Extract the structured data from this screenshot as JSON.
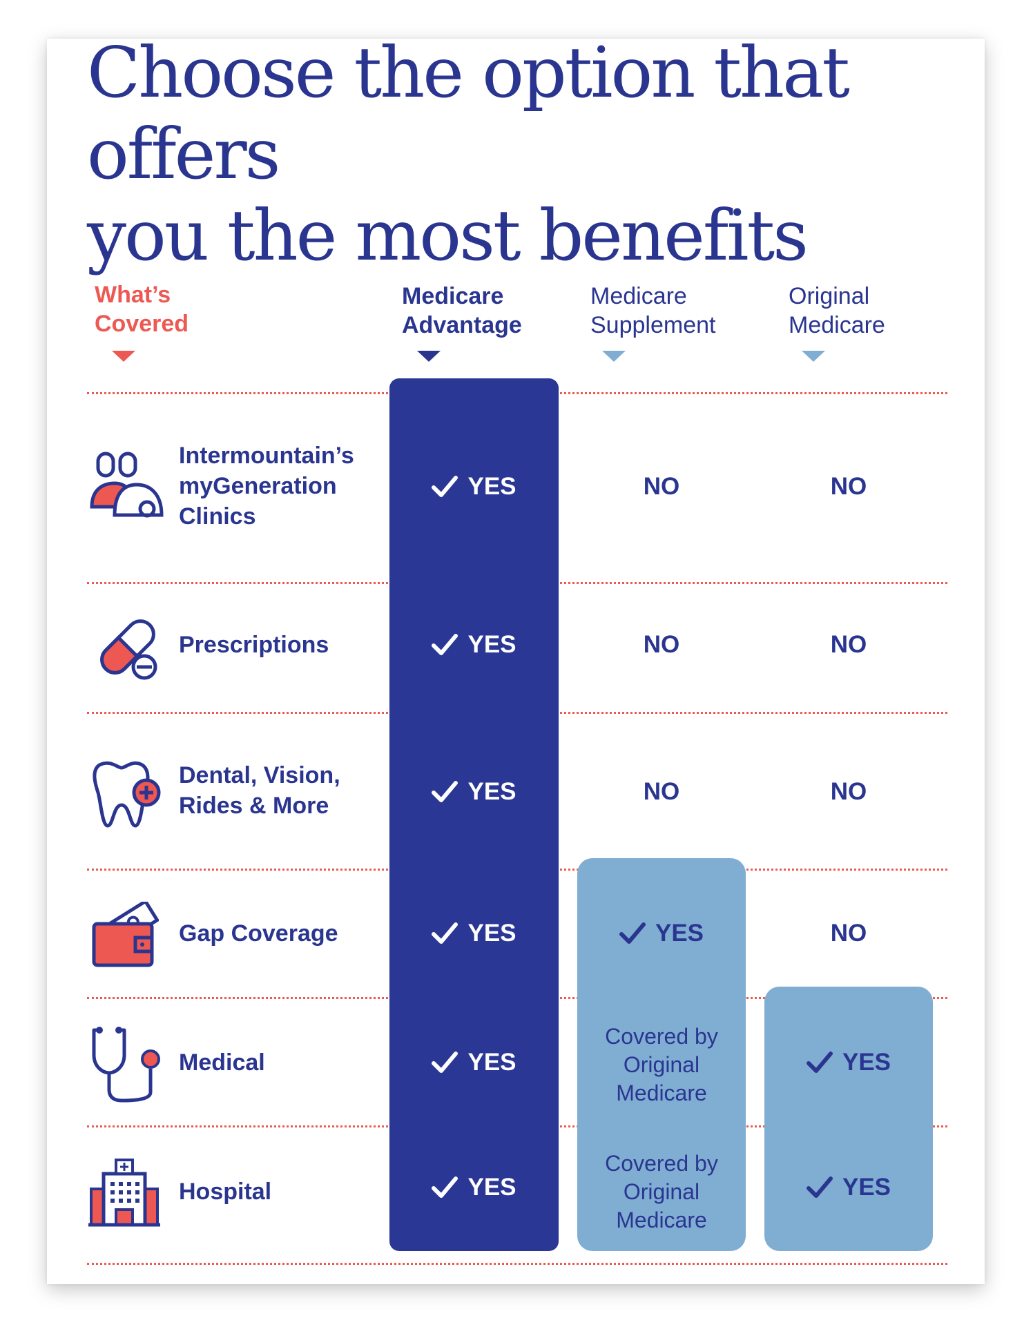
{
  "title": {
    "line1": "Choose the option that offers",
    "line2": "you the most benefits"
  },
  "columns": {
    "covered": {
      "line1": "What’s",
      "line2": "Covered"
    },
    "medicare_advantage": {
      "line1": "Medicare",
      "line2": "Advantage"
    },
    "medicare_supplement": {
      "line1": "Medicare",
      "line2": "Supplement"
    },
    "original_medicare": {
      "line1": "Original",
      "line2": "Medicare"
    }
  },
  "rows": [
    {
      "icon": "doctor-patient-icon",
      "label": [
        "Intermountain’s",
        "myGeneration",
        "Clinics"
      ],
      "ma": "YES",
      "ms": "NO",
      "om": "NO"
    },
    {
      "icon": "pill-capsule-icon",
      "label": [
        "Prescriptions"
      ],
      "ma": "YES",
      "ms": "NO",
      "om": "NO"
    },
    {
      "icon": "tooth-plus-icon",
      "label": [
        "Dental, Vision,",
        "Rides & More"
      ],
      "ma": "YES",
      "ms": "NO",
      "om": "NO"
    },
    {
      "icon": "wallet-cash-icon",
      "label": [
        "Gap Coverage"
      ],
      "ma": "YES",
      "ms": "YES",
      "om": "NO"
    },
    {
      "icon": "stethoscope-icon",
      "label": [
        "Medical"
      ],
      "ma": "YES",
      "ms": [
        "Covered by",
        "Original",
        "Medicare"
      ],
      "om": "YES"
    },
    {
      "icon": "hospital-building-icon",
      "label": [
        "Hospital"
      ],
      "ma": "YES",
      "ms": [
        "Covered by",
        "Original",
        "Medicare"
      ],
      "om": "YES"
    }
  ],
  "colors": {
    "navy": "#2a3794",
    "text_navy": "#2a3590",
    "coral": "#ee5852",
    "light_blue": "#80aed3"
  }
}
